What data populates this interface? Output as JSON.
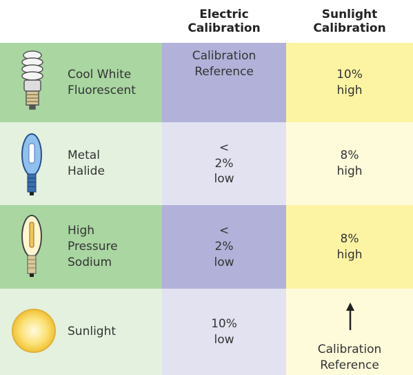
{
  "table": {
    "headers": [
      "Electric Calibration",
      "Sunlight Calibration"
    ],
    "rows": [
      [
        "Cool White Fluorescent",
        "Calibration Reference",
        "10% high"
      ],
      [
        "Metal Halide",
        "< 2% low",
        "8% high"
      ],
      [
        "High Pressure Sodium",
        "< 2% low",
        "8% high"
      ],
      [
        "Sunlight",
        "10% low",
        "Calibration Reference"
      ]
    ]
  }
}
